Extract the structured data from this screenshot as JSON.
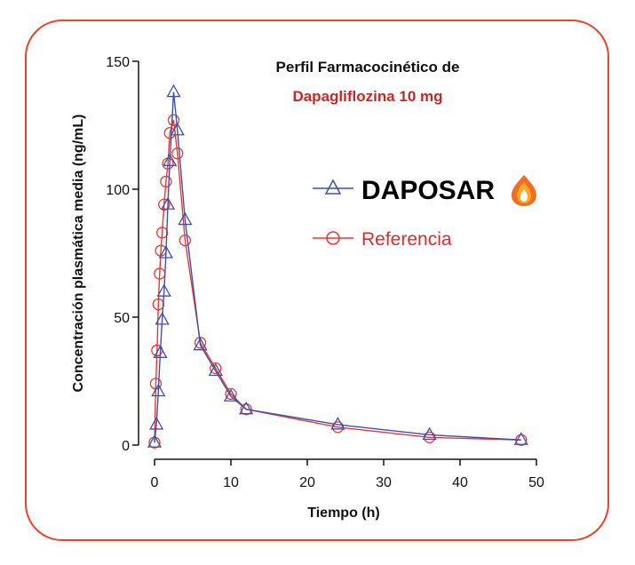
{
  "chart_data": {
    "type": "line",
    "title": "Perfil Farmacocinético de",
    "subtitle": "Dapagliflozina 10 mg",
    "xlabel": "Tiempo (h)",
    "ylabel": "Concentración plasmática media (ng/mL)",
    "xlim": [
      0,
      50
    ],
    "ylim": [
      0,
      150
    ],
    "xticks": [
      0,
      10,
      20,
      30,
      40,
      50
    ],
    "yticks": [
      0,
      50,
      100,
      150
    ],
    "grid": false,
    "legend_position": "right",
    "series": [
      {
        "name": "DAPOSAR",
        "color": "#3f51a5",
        "marker": "triangle",
        "x": [
          0,
          0.25,
          0.5,
          0.75,
          1.0,
          1.25,
          1.5,
          1.75,
          2.0,
          2.5,
          3.0,
          4.0,
          6.0,
          8.0,
          10.0,
          12.0,
          24.0,
          36.0,
          48.0
        ],
        "values": [
          1,
          8,
          21,
          36,
          49,
          60,
          75,
          94,
          111,
          138,
          123,
          88,
          39,
          29,
          19,
          14,
          8,
          4,
          2
        ]
      },
      {
        "name": "Referencia",
        "color": "#e53935",
        "marker": "circle",
        "x": [
          0,
          0.17,
          0.33,
          0.5,
          0.67,
          0.83,
          1.0,
          1.25,
          1.5,
          1.75,
          2.0,
          2.5,
          3.0,
          4.0,
          6.0,
          8.0,
          10.0,
          12.0,
          24.0,
          36.0,
          48.0
        ],
        "values": [
          1,
          24,
          37,
          55,
          67,
          76,
          83,
          94,
          103,
          110,
          122,
          127,
          114,
          80,
          40,
          30,
          20,
          14,
          7,
          3,
          2
        ]
      }
    ]
  }
}
